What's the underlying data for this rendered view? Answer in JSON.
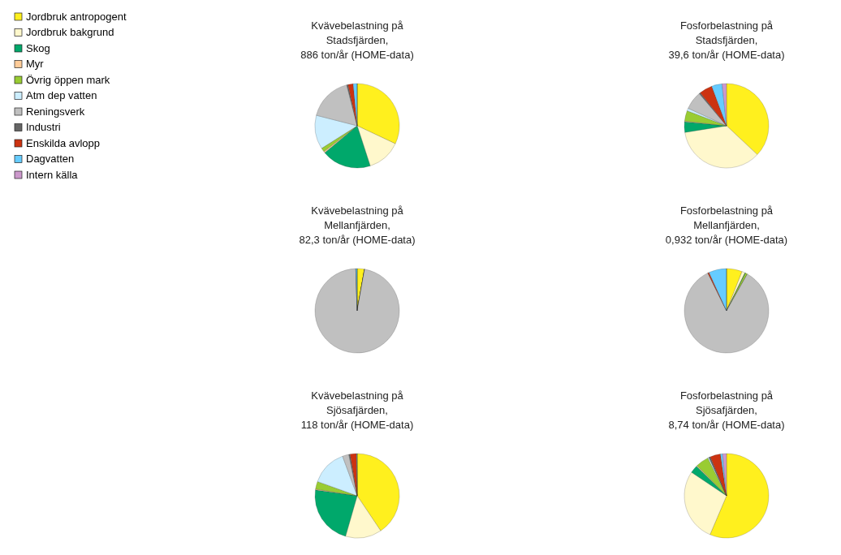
{
  "chart_data": [
    {
      "type": "pie",
      "title": "Kvävebelastning på\nStadsfjärden,\n886 ton/år (HOME-data)",
      "legend": "left",
      "categories": [
        "Jordbruk antropogent",
        "Jordbruk bakgrund",
        "Skog",
        "Myr",
        "Övrig öppen mark",
        "Atm dep vatten",
        "Reningsverk",
        "Industri",
        "Enskilda avlopp",
        "Dagvatten",
        "Intern källa"
      ],
      "values": [
        32,
        13,
        19,
        0.5,
        1.5,
        13,
        17,
        0.5,
        2,
        1.5,
        0
      ],
      "colors": [
        "#fff01e",
        "#fff8cc",
        "#00a86b",
        "#ffcc99",
        "#99cc33",
        "#cceeff",
        "#c0c0c0",
        "#666666",
        "#cc3311",
        "#66ccff",
        "#cc99cc"
      ]
    },
    {
      "type": "pie",
      "title": "Fosforbelastning på\nStadsfjärden,\n39,6 ton/år (HOME-data)",
      "categories": [
        null,
        null,
        null,
        null,
        null,
        null,
        null,
        null,
        null,
        null,
        null
      ],
      "values": [
        37,
        35.5,
        4,
        0.3,
        4,
        1,
        7,
        0.5,
        5,
        4,
        1.7
      ],
      "colors": [
        "#fff01e",
        "#fff8cc",
        "#00a86b",
        "#ffcc99",
        "#99cc33",
        "#cceeff",
        "#c0c0c0",
        "#666666",
        "#cc3311",
        "#66ccff",
        "#cc99cc"
      ]
    },
    {
      "type": "pie",
      "title": "Kvävebelastning på\nMellanfjärden,\n82,3 ton/år (HOME-data)",
      "categories": [
        null,
        null,
        null,
        null,
        null,
        null,
        null,
        null,
        null,
        null,
        null
      ],
      "values": [
        2.8,
        0,
        0,
        0,
        0,
        0,
        96.7,
        0,
        0,
        0.5,
        0
      ],
      "colors": [
        "#fff01e",
        "#fff8cc",
        "#00a86b",
        "#ffcc99",
        "#99cc33",
        "#cceeff",
        "#c0c0c0",
        "#666666",
        "#cc3311",
        "#66ccff",
        "#cc99cc"
      ]
    },
    {
      "type": "pie",
      "title": "Fosforbelastning på\nMellanfjärden,\n0,932 ton/år (HOME-data)",
      "categories": [
        null,
        null,
        null,
        null,
        null,
        null,
        null,
        null,
        null,
        null,
        null
      ],
      "values": [
        6,
        1.2,
        0.2,
        0,
        0.8,
        0,
        84.5,
        0,
        0.5,
        6.8,
        0
      ],
      "colors": [
        "#fff01e",
        "#fff8cc",
        "#00a86b",
        "#ffcc99",
        "#99cc33",
        "#cceeff",
        "#c0c0c0",
        "#666666",
        "#cc3311",
        "#66ccff",
        "#cc99cc"
      ]
    },
    {
      "type": "pie",
      "title": "Kvävebelastning på\nSjösafjärden,\n118 ton/år (HOME-data)",
      "categories": [
        null,
        null,
        null,
        null,
        null,
        null,
        null,
        null,
        null,
        null,
        null
      ],
      "values": [
        41,
        14,
        23,
        0.3,
        3,
        14,
        2.5,
        0.5,
        2.5,
        0.2,
        0
      ],
      "colors": [
        "#fff01e",
        "#fff8cc",
        "#00a86b",
        "#ffcc99",
        "#99cc33",
        "#cceeff",
        "#c0c0c0",
        "#666666",
        "#cc3311",
        "#66ccff",
        "#cc99cc"
      ]
    },
    {
      "type": "pie",
      "title": "Fosforbelastning på\nSjösafjärden,\n8,74 ton/år (HOME-data)",
      "categories": [
        null,
        null,
        null,
        null,
        null,
        null,
        null,
        null,
        null,
        null,
        null
      ],
      "values": [
        56.4,
        28,
        3,
        0.3,
        5,
        0.5,
        0,
        0.5,
        4,
        0.8,
        1.5
      ],
      "colors": [
        "#fff01e",
        "#fff8cc",
        "#00a86b",
        "#ffcc99",
        "#99cc33",
        "#cceeff",
        "#c0c0c0",
        "#666666",
        "#cc3311",
        "#66ccff",
        "#cc99cc"
      ]
    }
  ]
}
